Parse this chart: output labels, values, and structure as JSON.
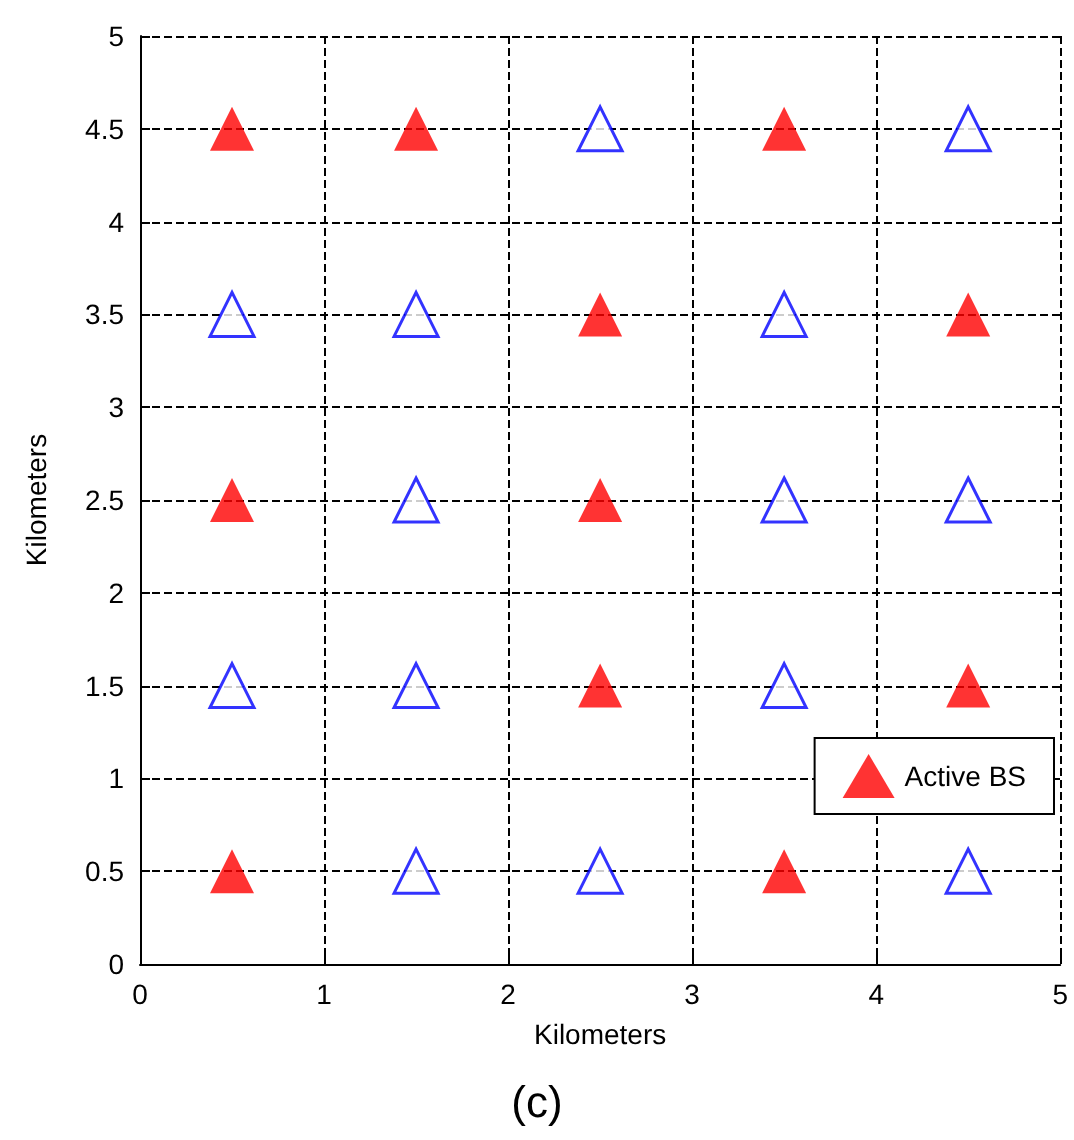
{
  "chart_data": {
    "type": "scatter",
    "xlabel": "Kilometers",
    "ylabel": "Kilometers",
    "annotations": [
      "(c)"
    ],
    "series": [
      {
        "name": "Active BS",
        "color": "#ff0000",
        "x": [
          0.5,
          1.5,
          3.5,
          2.5,
          4.5,
          0.5,
          2.5,
          2.5,
          4.5,
          0.5,
          3.5
        ],
        "values": [
          4.5,
          4.5,
          4.5,
          3.5,
          3.5,
          2.5,
          2.5,
          1.5,
          1.5,
          0.5,
          0.5
        ]
      },
      {
        "color": "#0000ff",
        "x": [
          2.5,
          4.5,
          0.5,
          1.5,
          3.5,
          1.5,
          3.5,
          4.5,
          0.5,
          1.5,
          3.5,
          1.5,
          2.5,
          4.5
        ],
        "values": [
          4.5,
          4.5,
          3.5,
          3.5,
          3.5,
          2.5,
          2.5,
          2.5,
          1.5,
          1.5,
          1.5,
          0.5,
          0.5,
          0.5
        ]
      }
    ],
    "xlim": [
      0,
      5
    ],
    "ylim": [
      0,
      5
    ],
    "xticks": [
      0,
      1,
      2,
      3,
      4,
      5
    ],
    "yticks": [
      0,
      0.5,
      1,
      1.5,
      2,
      2.5,
      3,
      3.5,
      4,
      4.5,
      5
    ],
    "grid": true,
    "legend": "bottom right",
    "marker": "triangle"
  }
}
